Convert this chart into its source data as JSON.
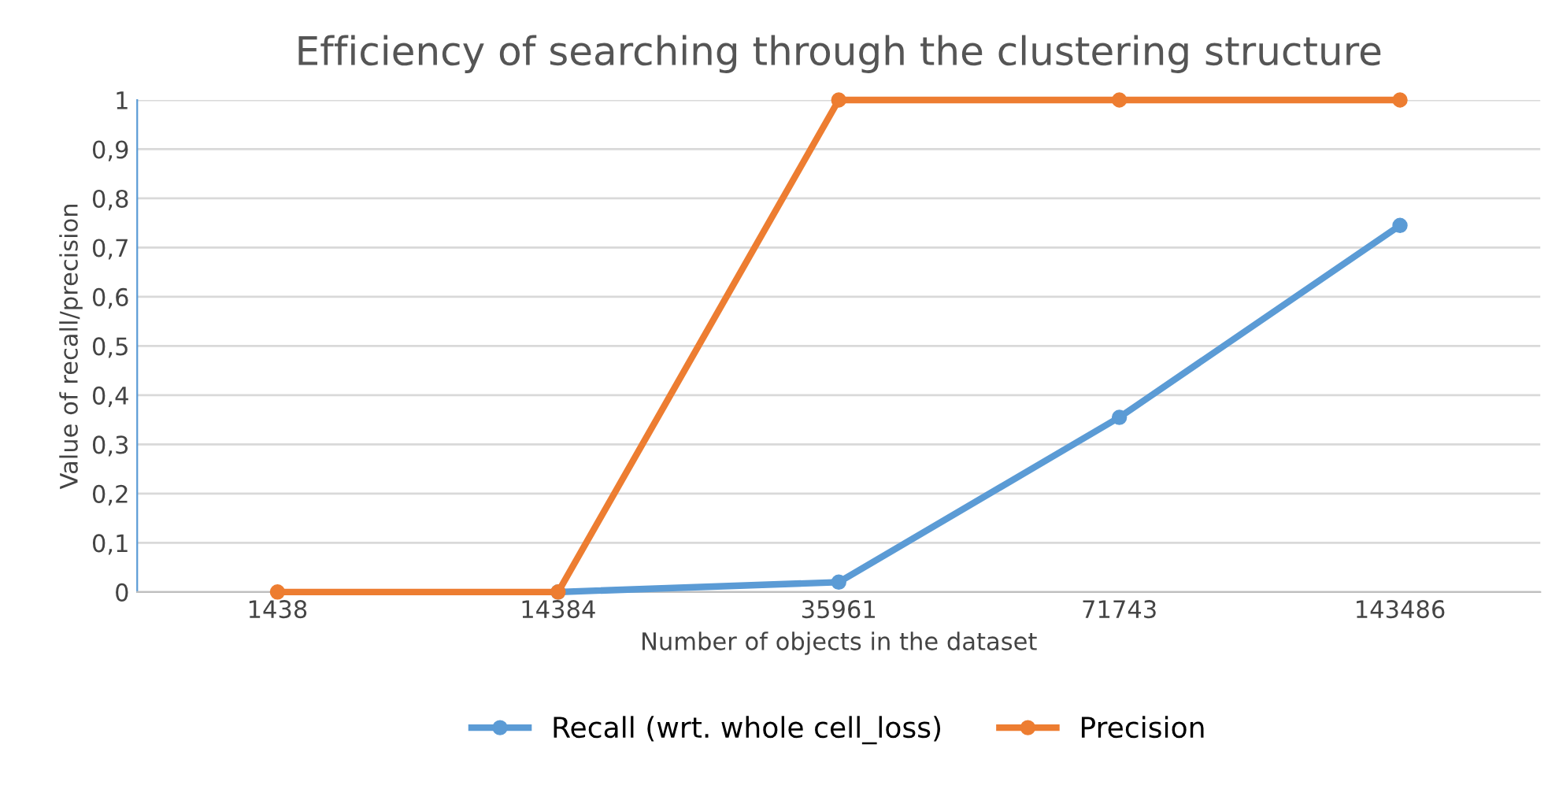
{
  "chart_data": {
    "type": "line",
    "title": "Efficiency of searching through the clustering structure",
    "xlabel": "Number of objects in the dataset",
    "ylabel": "Value of recall/precision",
    "categories": [
      "1438",
      "14384",
      "35961",
      "71743",
      "143486"
    ],
    "series": [
      {
        "name": "Recall (wrt. whole cell_loss)",
        "color": "#5b9bd5",
        "values": [
          null,
          0,
          0.02,
          0.355,
          0.745
        ]
      },
      {
        "name": "Precision",
        "color": "#ed7d31",
        "values": [
          0,
          0,
          1,
          1,
          1
        ]
      }
    ],
    "ylim": [
      0,
      1
    ],
    "yticks": [
      0,
      {
        "value": 0.1,
        "label": "0,1"
      },
      {
        "value": 0.2,
        "label": "0,2"
      },
      {
        "value": 0.3,
        "label": "0,3"
      },
      {
        "value": 0.4,
        "label": "0,4"
      },
      {
        "value": 0.5,
        "label": "0,5"
      },
      {
        "value": 0.6,
        "label": "0,6"
      },
      {
        "value": 0.7,
        "label": "0,7"
      },
      {
        "value": 0.8,
        "label": "0,8"
      },
      {
        "value": 0.9,
        "label": "0,9"
      },
      1
    ],
    "grid": "y",
    "legend": "bottom",
    "marker": "circle",
    "line_style": "solid"
  }
}
